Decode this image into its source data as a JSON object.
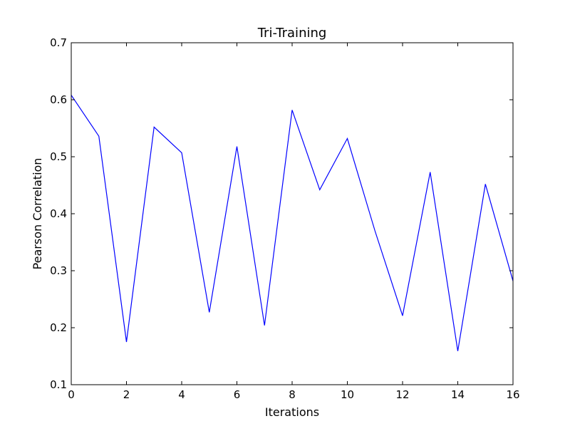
{
  "chart_data": {
    "type": "line",
    "title": "Tri-Training",
    "xlabel": "Iterations",
    "ylabel": "Pearson Correlation",
    "xlim": [
      0,
      16
    ],
    "ylim": [
      0.1,
      0.7
    ],
    "xticks": [
      0,
      2,
      4,
      6,
      8,
      10,
      12,
      14,
      16
    ],
    "xtick_labels": [
      "0",
      "2",
      "4",
      "6",
      "8",
      "10",
      "12",
      "14",
      "16"
    ],
    "yticks": [
      0.1,
      0.2,
      0.3,
      0.4,
      0.5,
      0.6,
      0.7
    ],
    "ytick_labels": [
      "0.1",
      "0.2",
      "0.3",
      "0.4",
      "0.5",
      "0.6",
      "0.7"
    ],
    "grid": false,
    "series": [
      {
        "color": "#0000ff",
        "x": [
          0,
          1,
          2,
          3,
          4,
          5,
          6,
          7,
          8,
          9,
          10,
          11,
          12,
          13,
          14,
          15,
          16
        ],
        "y": [
          0.608,
          0.536,
          0.175,
          0.552,
          0.507,
          0.227,
          0.518,
          0.204,
          0.582,
          0.442,
          0.532,
          0.37,
          0.221,
          0.473,
          0.159,
          0.452,
          0.282
        ]
      }
    ]
  }
}
